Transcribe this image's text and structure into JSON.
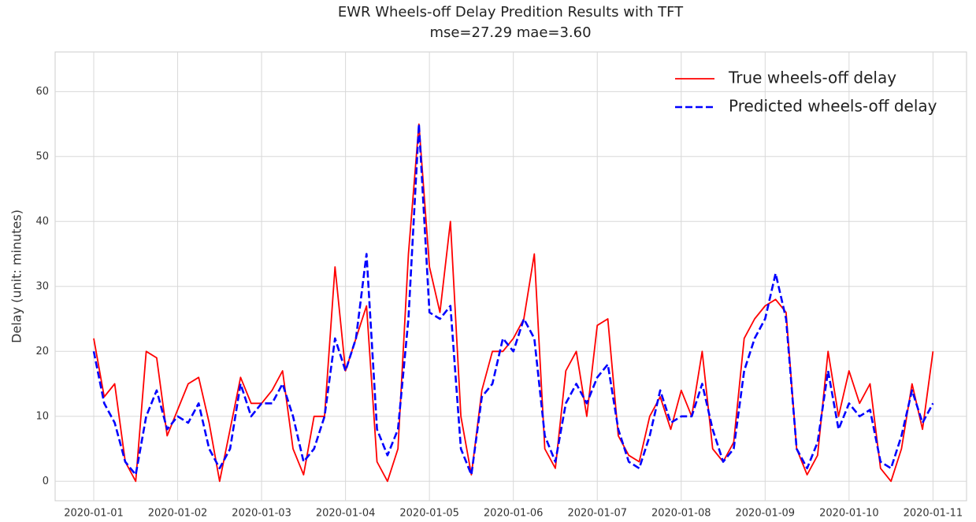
{
  "chart_data": {
    "type": "line",
    "title": "EWR Wheels-off Delay Predition Results with TFT",
    "subtitle": "mse=27.29 mae=3.60",
    "ylabel": "Delay (unit: minutes)",
    "x": [
      0,
      0.125,
      0.25,
      0.375,
      0.5,
      0.625,
      0.75,
      0.875,
      1,
      1.125,
      1.25,
      1.375,
      1.5,
      1.625,
      1.75,
      1.875,
      2,
      2.125,
      2.25,
      2.375,
      2.5,
      2.625,
      2.75,
      2.875,
      3,
      3.125,
      3.25,
      3.375,
      3.5,
      3.625,
      3.75,
      3.875,
      4,
      4.125,
      4.25,
      4.375,
      4.5,
      4.625,
      4.75,
      4.875,
      5,
      5.125,
      5.25,
      5.375,
      5.5,
      5.625,
      5.75,
      5.875,
      6,
      6.125,
      6.25,
      6.375,
      6.5,
      6.625,
      6.75,
      6.875,
      7,
      7.125,
      7.25,
      7.375,
      7.5,
      7.625,
      7.75,
      7.875,
      8,
      8.125,
      8.25,
      8.375,
      8.5,
      8.625,
      8.75,
      8.875,
      9,
      9.125,
      9.25,
      9.375,
      9.5,
      9.625,
      9.75,
      9.875,
      10
    ],
    "series": [
      {
        "name": "True wheels-off delay",
        "color": "#ff0000",
        "linestyle": "solid",
        "values": [
          22,
          13,
          15,
          3,
          0,
          20,
          19,
          7,
          11,
          15,
          16,
          9,
          0,
          8,
          16,
          12,
          12,
          14,
          17,
          5,
          1,
          10,
          10,
          33,
          17,
          22,
          27,
          3,
          0,
          5,
          35,
          55,
          33,
          26,
          40,
          10,
          1,
          14,
          20,
          20,
          22,
          25,
          35,
          5,
          2,
          17,
          20,
          10,
          24,
          25,
          7,
          4,
          3,
          10,
          13,
          8,
          14,
          10,
          20,
          5,
          3,
          6,
          22,
          25,
          27,
          28,
          26,
          5,
          1,
          4,
          20,
          10,
          17,
          12,
          15,
          2,
          0,
          5,
          15,
          8,
          20
        ]
      },
      {
        "name": "Predicted wheels-off delay",
        "color": "#0000ff",
        "linestyle": "dashed",
        "values": [
          20,
          12,
          9,
          3,
          1,
          10,
          14,
          8,
          10,
          9,
          12,
          5,
          2,
          5,
          15,
          10,
          12,
          12,
          15,
          10,
          3,
          5,
          10,
          22,
          17,
          22,
          35,
          8,
          4,
          8,
          25,
          55,
          26,
          25,
          27,
          5,
          1,
          13,
          15,
          22,
          20,
          25,
          22,
          7,
          3,
          12,
          15,
          12,
          16,
          18,
          8,
          3,
          2,
          7,
          14,
          9,
          10,
          10,
          15,
          8,
          3,
          5,
          17,
          22,
          25,
          32,
          25,
          5,
          2,
          6,
          17,
          8,
          12,
          10,
          11,
          3,
          2,
          7,
          14,
          9,
          12
        ]
      }
    ],
    "xlim": [
      -0.46,
      10.4
    ],
    "xticks": [
      {
        "value": 0,
        "label": "2020-01-01"
      },
      {
        "value": 1,
        "label": "2020-01-02"
      },
      {
        "value": 2,
        "label": "2020-01-03"
      },
      {
        "value": 3,
        "label": "2020-01-04"
      },
      {
        "value": 4,
        "label": "2020-01-05"
      },
      {
        "value": 5,
        "label": "2020-01-06"
      },
      {
        "value": 6,
        "label": "2020-01-07"
      },
      {
        "value": 7,
        "label": "2020-01-08"
      },
      {
        "value": 8,
        "label": "2020-01-09"
      },
      {
        "value": 9,
        "label": "2020-01-10"
      },
      {
        "value": 10,
        "label": "2020-01-11"
      }
    ],
    "ylim": [
      -3.0,
      66.1
    ],
    "yticks": [
      0,
      10,
      20,
      30,
      40,
      50,
      60
    ],
    "grid": true,
    "legend": "upper right"
  }
}
